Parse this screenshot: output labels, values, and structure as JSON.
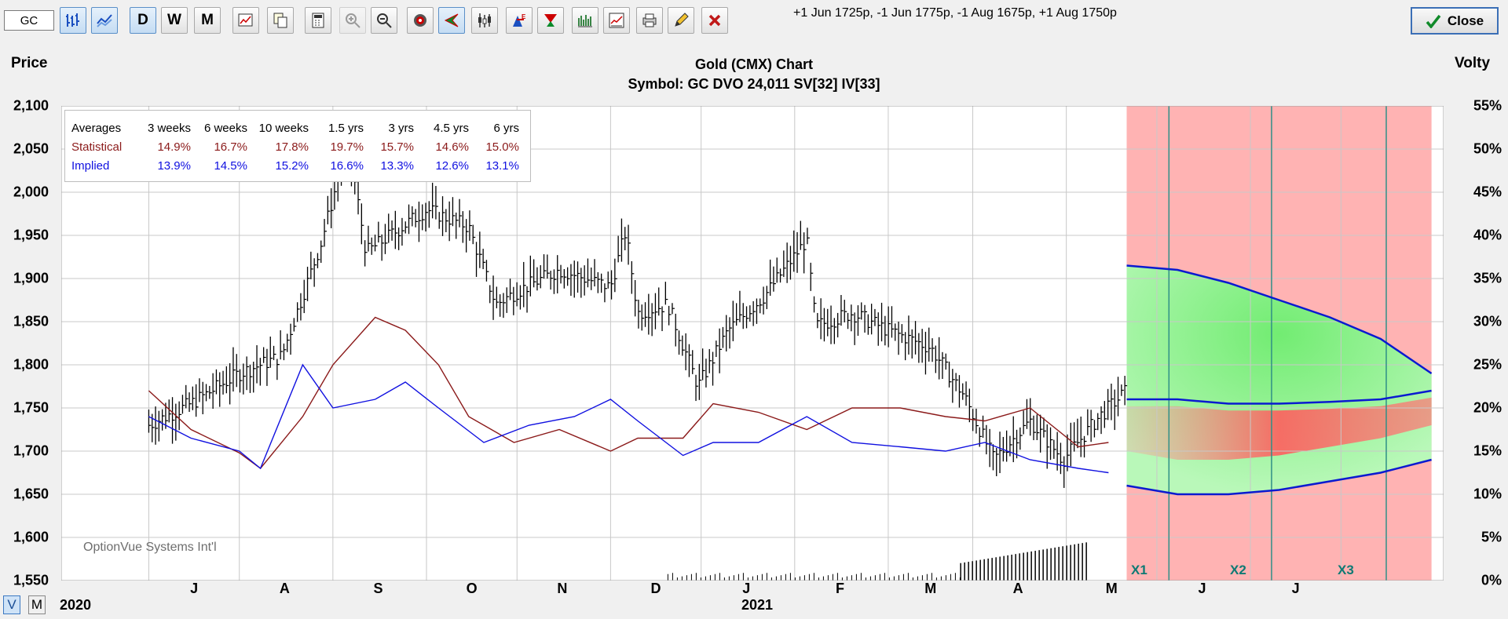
{
  "toolbar": {
    "symbol_value": "GC",
    "period_buttons": [
      "D",
      "W",
      "M"
    ],
    "strategy_text": "+1 Jun 1725p, -1 Jun 1775p, -1 Aug 1675p, +1 Aug 1750p",
    "close_label": "Close"
  },
  "header": {
    "left_axis_title": "Price",
    "right_axis_title": "Volty",
    "title": "Gold (CMX) Chart",
    "subtitle": "Symbol: GC  DVO 24,011  SV[32]  IV[33]"
  },
  "averages_table": {
    "header": [
      "Averages",
      "3 weeks",
      "6 weeks",
      "10 weeks",
      "1.5 yrs",
      "3 yrs",
      "4.5 yrs",
      "6 yrs"
    ],
    "statistical_label": "Statistical",
    "statistical": [
      "14.9%",
      "16.7%",
      "17.8%",
      "19.7%",
      "15.7%",
      "14.6%",
      "15.0%"
    ],
    "implied_label": "Implied",
    "implied": [
      "13.9%",
      "14.5%",
      "15.2%",
      "16.6%",
      "13.3%",
      "12.6%",
      "13.1%"
    ]
  },
  "watermark": "OptionVue Systems Int'l",
  "projection_markers": [
    "X1",
    "X2",
    "X3"
  ],
  "view_buttons": [
    "V",
    "M"
  ],
  "year_labels": [
    "2020",
    "2021"
  ],
  "colors": {
    "price_bars": "#000000",
    "statistical_vol": "#8b1a1a",
    "implied_vol": "#1010e0",
    "loss_zone": "#ffb3b3",
    "profit_zone": "#9ff59f",
    "projection_line": "#0a1ad0",
    "marker_line": "#2f8f87"
  },
  "chart_data": {
    "type": "line",
    "title": "Gold (CMX) Chart",
    "subtitle": "Symbol: GC  DVO 24,011  SV[32]  IV[33]",
    "left_axis": {
      "label": "Price",
      "min": 1550,
      "max": 2100,
      "ticks": [
        "2,100",
        "2,050",
        "2,000",
        "1,950",
        "1,900",
        "1,850",
        "1,800",
        "1,750",
        "1,700",
        "1,650",
        "1,600",
        "1,550"
      ]
    },
    "right_axis": {
      "label": "Volty",
      "min": 0,
      "max": 55,
      "ticks": [
        "55%",
        "50%",
        "45%",
        "40%",
        "35%",
        "30%",
        "25%",
        "20%",
        "15%",
        "10%",
        "5%",
        "0%"
      ]
    },
    "x_ticks": [
      "J",
      "A",
      "S",
      "O",
      "N",
      "D",
      "J",
      "F",
      "M",
      "A",
      "M",
      "J",
      "J"
    ],
    "grid": true,
    "price_series": {
      "name": "Price",
      "x": [
        "2020-06-01",
        "2020-06-15",
        "2020-07-01",
        "2020-07-15",
        "2020-07-28",
        "2020-08-06",
        "2020-08-12",
        "2020-08-20",
        "2020-09-01",
        "2020-09-15",
        "2020-09-24",
        "2020-10-01",
        "2020-10-15",
        "2020-11-01",
        "2020-11-06",
        "2020-11-10",
        "2020-11-20",
        "2020-11-30",
        "2020-12-10",
        "2020-12-22",
        "2021-01-05",
        "2021-01-08",
        "2021-01-20",
        "2021-02-01",
        "2021-02-15",
        "2021-02-26",
        "2021-03-08",
        "2021-03-20",
        "2021-03-31",
        "2021-04-12",
        "2021-04-21"
      ],
      "close": [
        1730,
        1755,
        1790,
        1810,
        1940,
        2060,
        1930,
        1950,
        1980,
        1960,
        1870,
        1885,
        1910,
        1890,
        1955,
        1860,
        1870,
        1775,
        1840,
        1880,
        1945,
        1845,
        1860,
        1840,
        1820,
        1765,
        1690,
        1735,
        1690,
        1740,
        1770
      ]
    },
    "statistical_volatility": {
      "name": "Statistical",
      "x": [
        "2020-06-01",
        "2020-06-15",
        "2020-07-01",
        "2020-07-08",
        "2020-07-22",
        "2020-08-01",
        "2020-08-15",
        "2020-08-25",
        "2020-09-05",
        "2020-09-15",
        "2020-09-30",
        "2020-10-15",
        "2020-11-01",
        "2020-11-10",
        "2020-11-25",
        "2020-12-05",
        "2020-12-20",
        "2021-01-05",
        "2021-01-20",
        "2021-02-05",
        "2021-02-20",
        "2021-03-05",
        "2021-03-20",
        "2021-04-05",
        "2021-04-15"
      ],
      "values": [
        22,
        17.5,
        14.8,
        13,
        19,
        25,
        30.5,
        29,
        25,
        19,
        16,
        17.5,
        15,
        16.5,
        16.5,
        20.5,
        19.5,
        17.5,
        20,
        20,
        19,
        18.5,
        20,
        15.5,
        16
      ]
    },
    "implied_volatility": {
      "name": "Implied",
      "x": [
        "2020-06-01",
        "2020-06-15",
        "2020-07-01",
        "2020-07-08",
        "2020-07-22",
        "2020-08-01",
        "2020-08-15",
        "2020-08-25",
        "2020-09-05",
        "2020-09-20",
        "2020-10-05",
        "2020-10-20",
        "2020-11-01",
        "2020-11-10",
        "2020-11-25",
        "2020-12-05",
        "2020-12-20",
        "2021-01-05",
        "2021-01-20",
        "2021-02-05",
        "2021-02-20",
        "2021-03-05",
        "2021-03-20",
        "2021-04-05",
        "2021-04-15"
      ],
      "values": [
        19,
        16.5,
        15,
        13,
        25,
        20,
        21,
        23,
        20,
        16,
        18,
        19,
        21,
        18.5,
        14.5,
        16,
        16,
        19,
        16,
        15.5,
        15,
        16,
        14,
        13,
        12.5
      ]
    },
    "volume_bars_max_pct": 4.5,
    "projection": {
      "start": "2021-04-21",
      "end": "2021-07-31",
      "upper_pct": [
        36.5,
        36,
        34.5,
        32.5,
        30.5,
        28,
        24
      ],
      "middle_pct": [
        21,
        21,
        20.5,
        20.5,
        20.7,
        21,
        22
      ],
      "lower_pct": [
        11,
        10,
        10,
        10.5,
        11.5,
        12.5,
        14
      ]
    }
  }
}
